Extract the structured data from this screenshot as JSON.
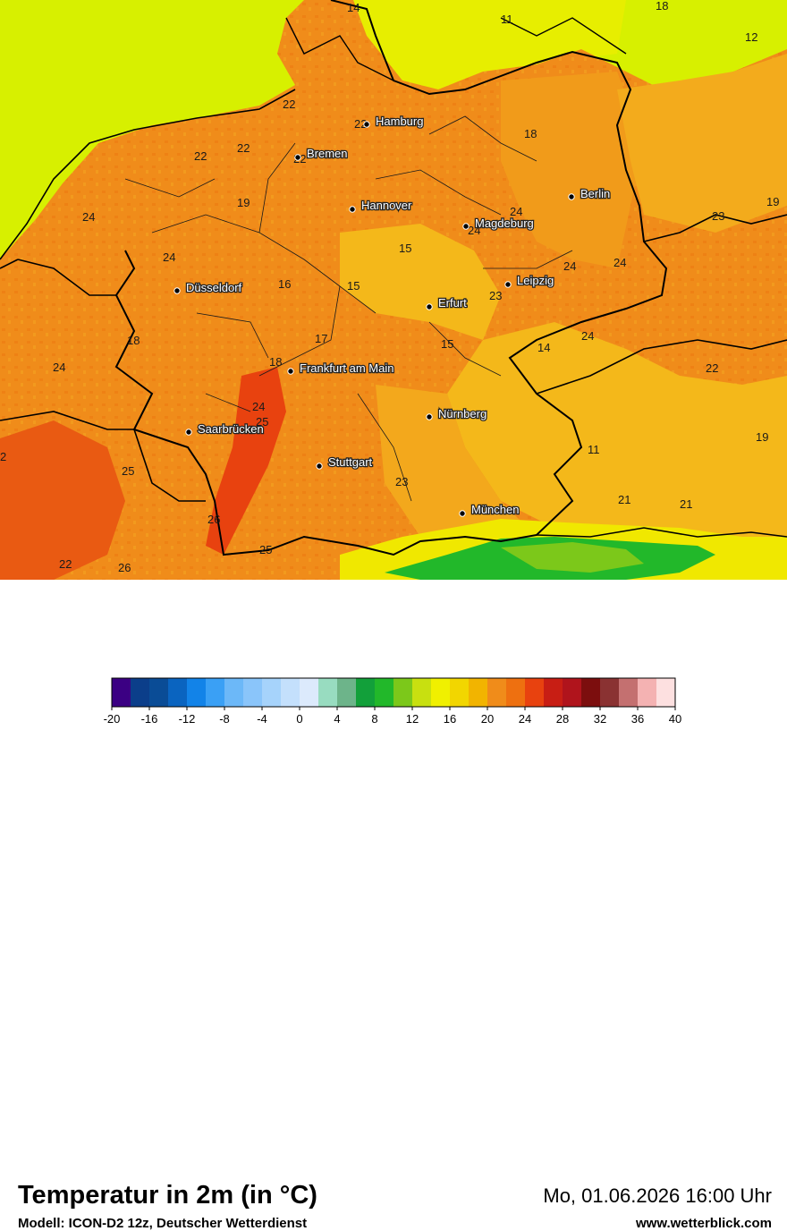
{
  "map": {
    "cities": [
      {
        "name": "Hamburg"
      },
      {
        "name": "Bremen"
      },
      {
        "name": "Berlin"
      },
      {
        "name": "Hannover"
      },
      {
        "name": "Magdeburg"
      },
      {
        "name": "Düsseldorf"
      },
      {
        "name": "Leipzig"
      },
      {
        "name": "Erfurt"
      },
      {
        "name": "Frankfurt am Main"
      },
      {
        "name": "Nürnberg"
      },
      {
        "name": "Saarbrücken"
      },
      {
        "name": "Stuttgart"
      },
      {
        "name": "München"
      }
    ],
    "temperatures": [
      "14",
      "11",
      "18",
      "12",
      "22",
      "22",
      "22",
      "22",
      "18",
      "19",
      "22",
      "24",
      "19",
      "24",
      "24",
      "24",
      "23",
      "15",
      "16",
      "15",
      "24",
      "23",
      "24",
      "24",
      "18",
      "17",
      "15",
      "14",
      "24",
      "24",
      "18",
      "22",
      "25",
      "19",
      "2",
      "25",
      "11",
      "23",
      "26",
      "21",
      "21",
      "25",
      "22",
      "26"
    ],
    "colors": {
      "sea_north": "#d7f000",
      "sea_baltic": "#e7ee00",
      "land_base": "#f08c1a",
      "land_orange_dark": "#ee7a12",
      "land_warm": "#f19b1a",
      "land_yellow": "#f4b81a",
      "land_hot": "#e8420f",
      "alps_yellow": "#f0e800",
      "alps_green": "#1fb81f",
      "border": "#000000"
    }
  },
  "footer": {
    "title": "Temperatur in 2m (in °C)",
    "model": "Modell: ICON-D2 12z, Deutscher Wetterdienst",
    "datetime": "Mo, 01.06.2026 16:00 Uhr",
    "website": "www.wetterblick.com"
  },
  "scale": {
    "colors": [
      "#3b0083",
      "#0b3e8a",
      "#0a4c96",
      "#0a64c0",
      "#1283e8",
      "#3aa0f5",
      "#6cb8f8",
      "#8ac5fa",
      "#a6d3fb",
      "#c4e0fc",
      "#dceafc",
      "#98dcc0",
      "#6db48a",
      "#12a03a",
      "#22b82a",
      "#7cc81a",
      "#c8e010",
      "#f0f000",
      "#f2d600",
      "#f2b400",
      "#f08c1a",
      "#ee7010",
      "#e8420f",
      "#c81e14",
      "#b0141c",
      "#7c0e0e",
      "#8a3232",
      "#c47070",
      "#f4b2b2",
      "#fde0e0"
    ],
    "labels": [
      "-20",
      "-16",
      "-12",
      "-8",
      "-4",
      "0",
      "4",
      "8",
      "12",
      "16",
      "20",
      "24",
      "28",
      "32",
      "36",
      "40"
    ]
  }
}
